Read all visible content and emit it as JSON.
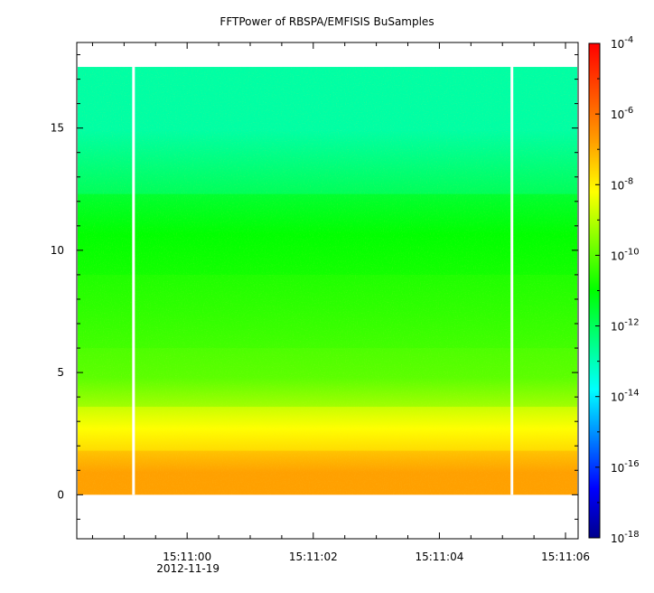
{
  "chart_data": {
    "type": "heatmap",
    "title": "FFTPower of RBSPA/EMFISIS  BuSamples",
    "xlabel": "",
    "ylabel": "",
    "x_tick_labels": [
      "15:11:00",
      "15:11:02",
      "15:11:04",
      "15:11:06"
    ],
    "x_ticks_seconds": [
      0,
      2,
      4,
      6
    ],
    "x_date_label": "2012-11-19",
    "xlim_seconds": [
      -1.75,
      6.2
    ],
    "ylim": [
      -1.8,
      18.5
    ],
    "y_ticks": [
      0,
      5,
      10,
      15
    ],
    "data_extent": {
      "y": [
        0,
        17.5
      ]
    },
    "data_gaps_seconds": [
      -0.85,
      5.15
    ],
    "colorbar": {
      "scale": "log",
      "range": [
        1e-18,
        0.0001
      ],
      "tick_exponents": [
        -4,
        -6,
        -8,
        -10,
        -12,
        -14,
        -16,
        -18
      ],
      "colors": [
        "#00008c",
        "#0000ff",
        "#0080ff",
        "#00ffff",
        "#00ff80",
        "#00ff00",
        "#80ff00",
        "#ffff00",
        "#ffa000",
        "#ff5000",
        "#ff0000"
      ]
    },
    "bands": [
      {
        "y_range": [
          12.3,
          17.5
        ],
        "approx_log10_power": -12.8
      },
      {
        "y_range": [
          9.0,
          12.3
        ],
        "approx_log10_power": -11.0
      },
      {
        "y_range": [
          6.0,
          9.0
        ],
        "approx_log10_power": -10.5
      },
      {
        "y_range": [
          3.6,
          6.0
        ],
        "approx_log10_power": -10.0
      },
      {
        "y_range": [
          1.8,
          3.6
        ],
        "approx_log10_power": -8.2
      },
      {
        "y_range": [
          0.0,
          1.8
        ],
        "approx_log10_power": -6.8
      }
    ]
  }
}
